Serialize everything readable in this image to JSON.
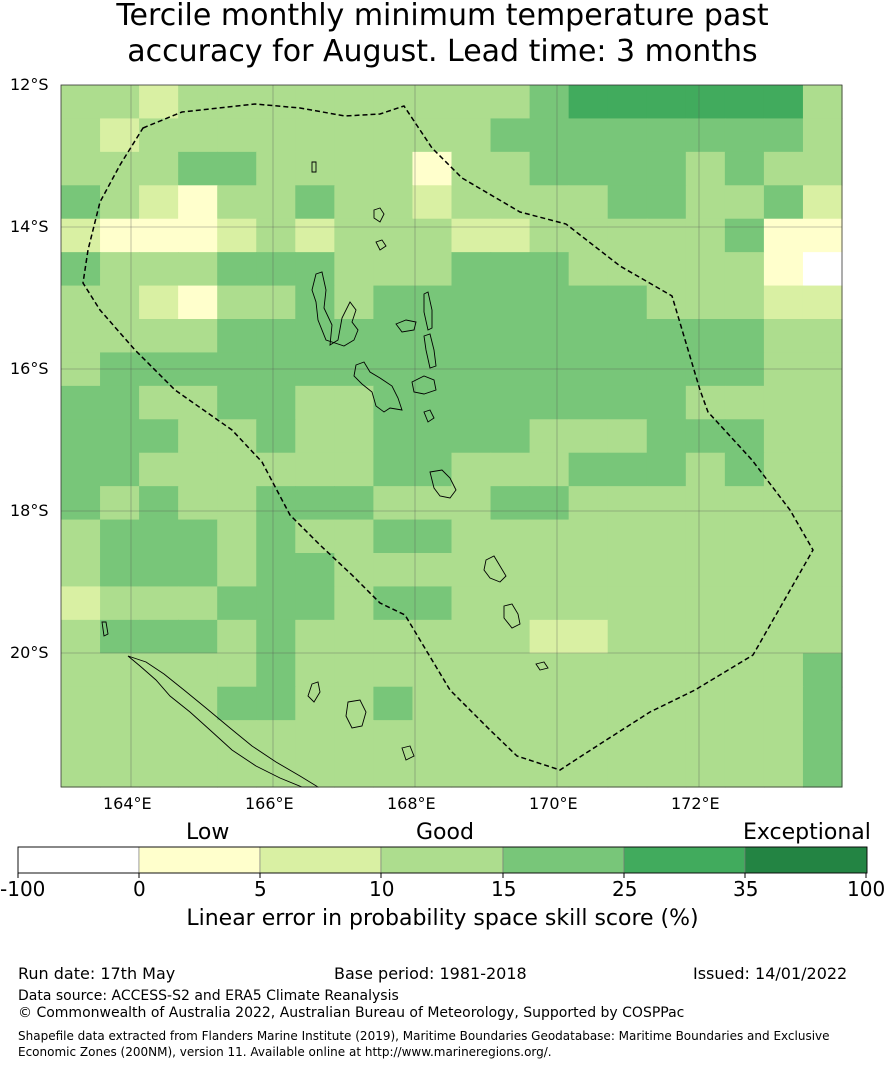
{
  "title": {
    "line1": "Tercile monthly minimum temperature past",
    "line2": "accuracy for August. Lead time: 3 months"
  },
  "map": {
    "lat_labels": [
      "12°S",
      "14°S",
      "16°S",
      "18°S",
      "20°S"
    ],
    "lon_labels": [
      "164°E",
      "166°E",
      "168°E",
      "170°E",
      "172°E"
    ],
    "grid": [
      "33233333333345555553",
      "32333333333444444443",
      "33344333313344443433",
      "43213343323333443342",
      "21112323332233333411",
      "43334443334443333310",
      "33213343444444433322",
      "33334444444444444433",
      "34444444444444444433",
      "44334433444444443333",
      "44433433444433344433",
      "44333333443334443433",
      "43433444333443333333",
      "34443433443333333333",
      "34443443333333333333",
      "23334443443333333333",
      "34443433333322333333",
      "33333433333333333334",
      "33334433433333333334",
      "33333333333333333334",
      "33333333333333333334"
    ],
    "colors": [
      "#ffffff",
      "#ffffcc",
      "#d9f0a3",
      "#addd8e",
      "#78c679",
      "#41ab5d",
      "#238443"
    ]
  },
  "legend": {
    "categories": [
      "Low",
      "Good",
      "Exceptional"
    ],
    "ticks": [
      "-100",
      "0",
      "5",
      "10",
      "15",
      "25",
      "35",
      "100"
    ],
    "label": "Linear error in probability space skill score (%)"
  },
  "footer": {
    "run_date": "Run date: 17th May",
    "base_period": "Base period: 1981-2018",
    "issued": "Issued: 14/01/2022",
    "data_source": "Data source: ACCESS-S2 and ERA5 Climate Reanalysis",
    "copyright": "© Commonwealth of Australia 2022, Australian Bureau of Meteorology, Supported by COSPPac",
    "shapefile_line1": "Shapefile data extracted from Flanders Marine Institute (2019), Maritime Boundaries Geodatabase: Maritime Boundaries and Exclusive",
    "shapefile_line2": "Economic Zones (200NM), version 11. Available online at http://www.marineregions.org/."
  }
}
